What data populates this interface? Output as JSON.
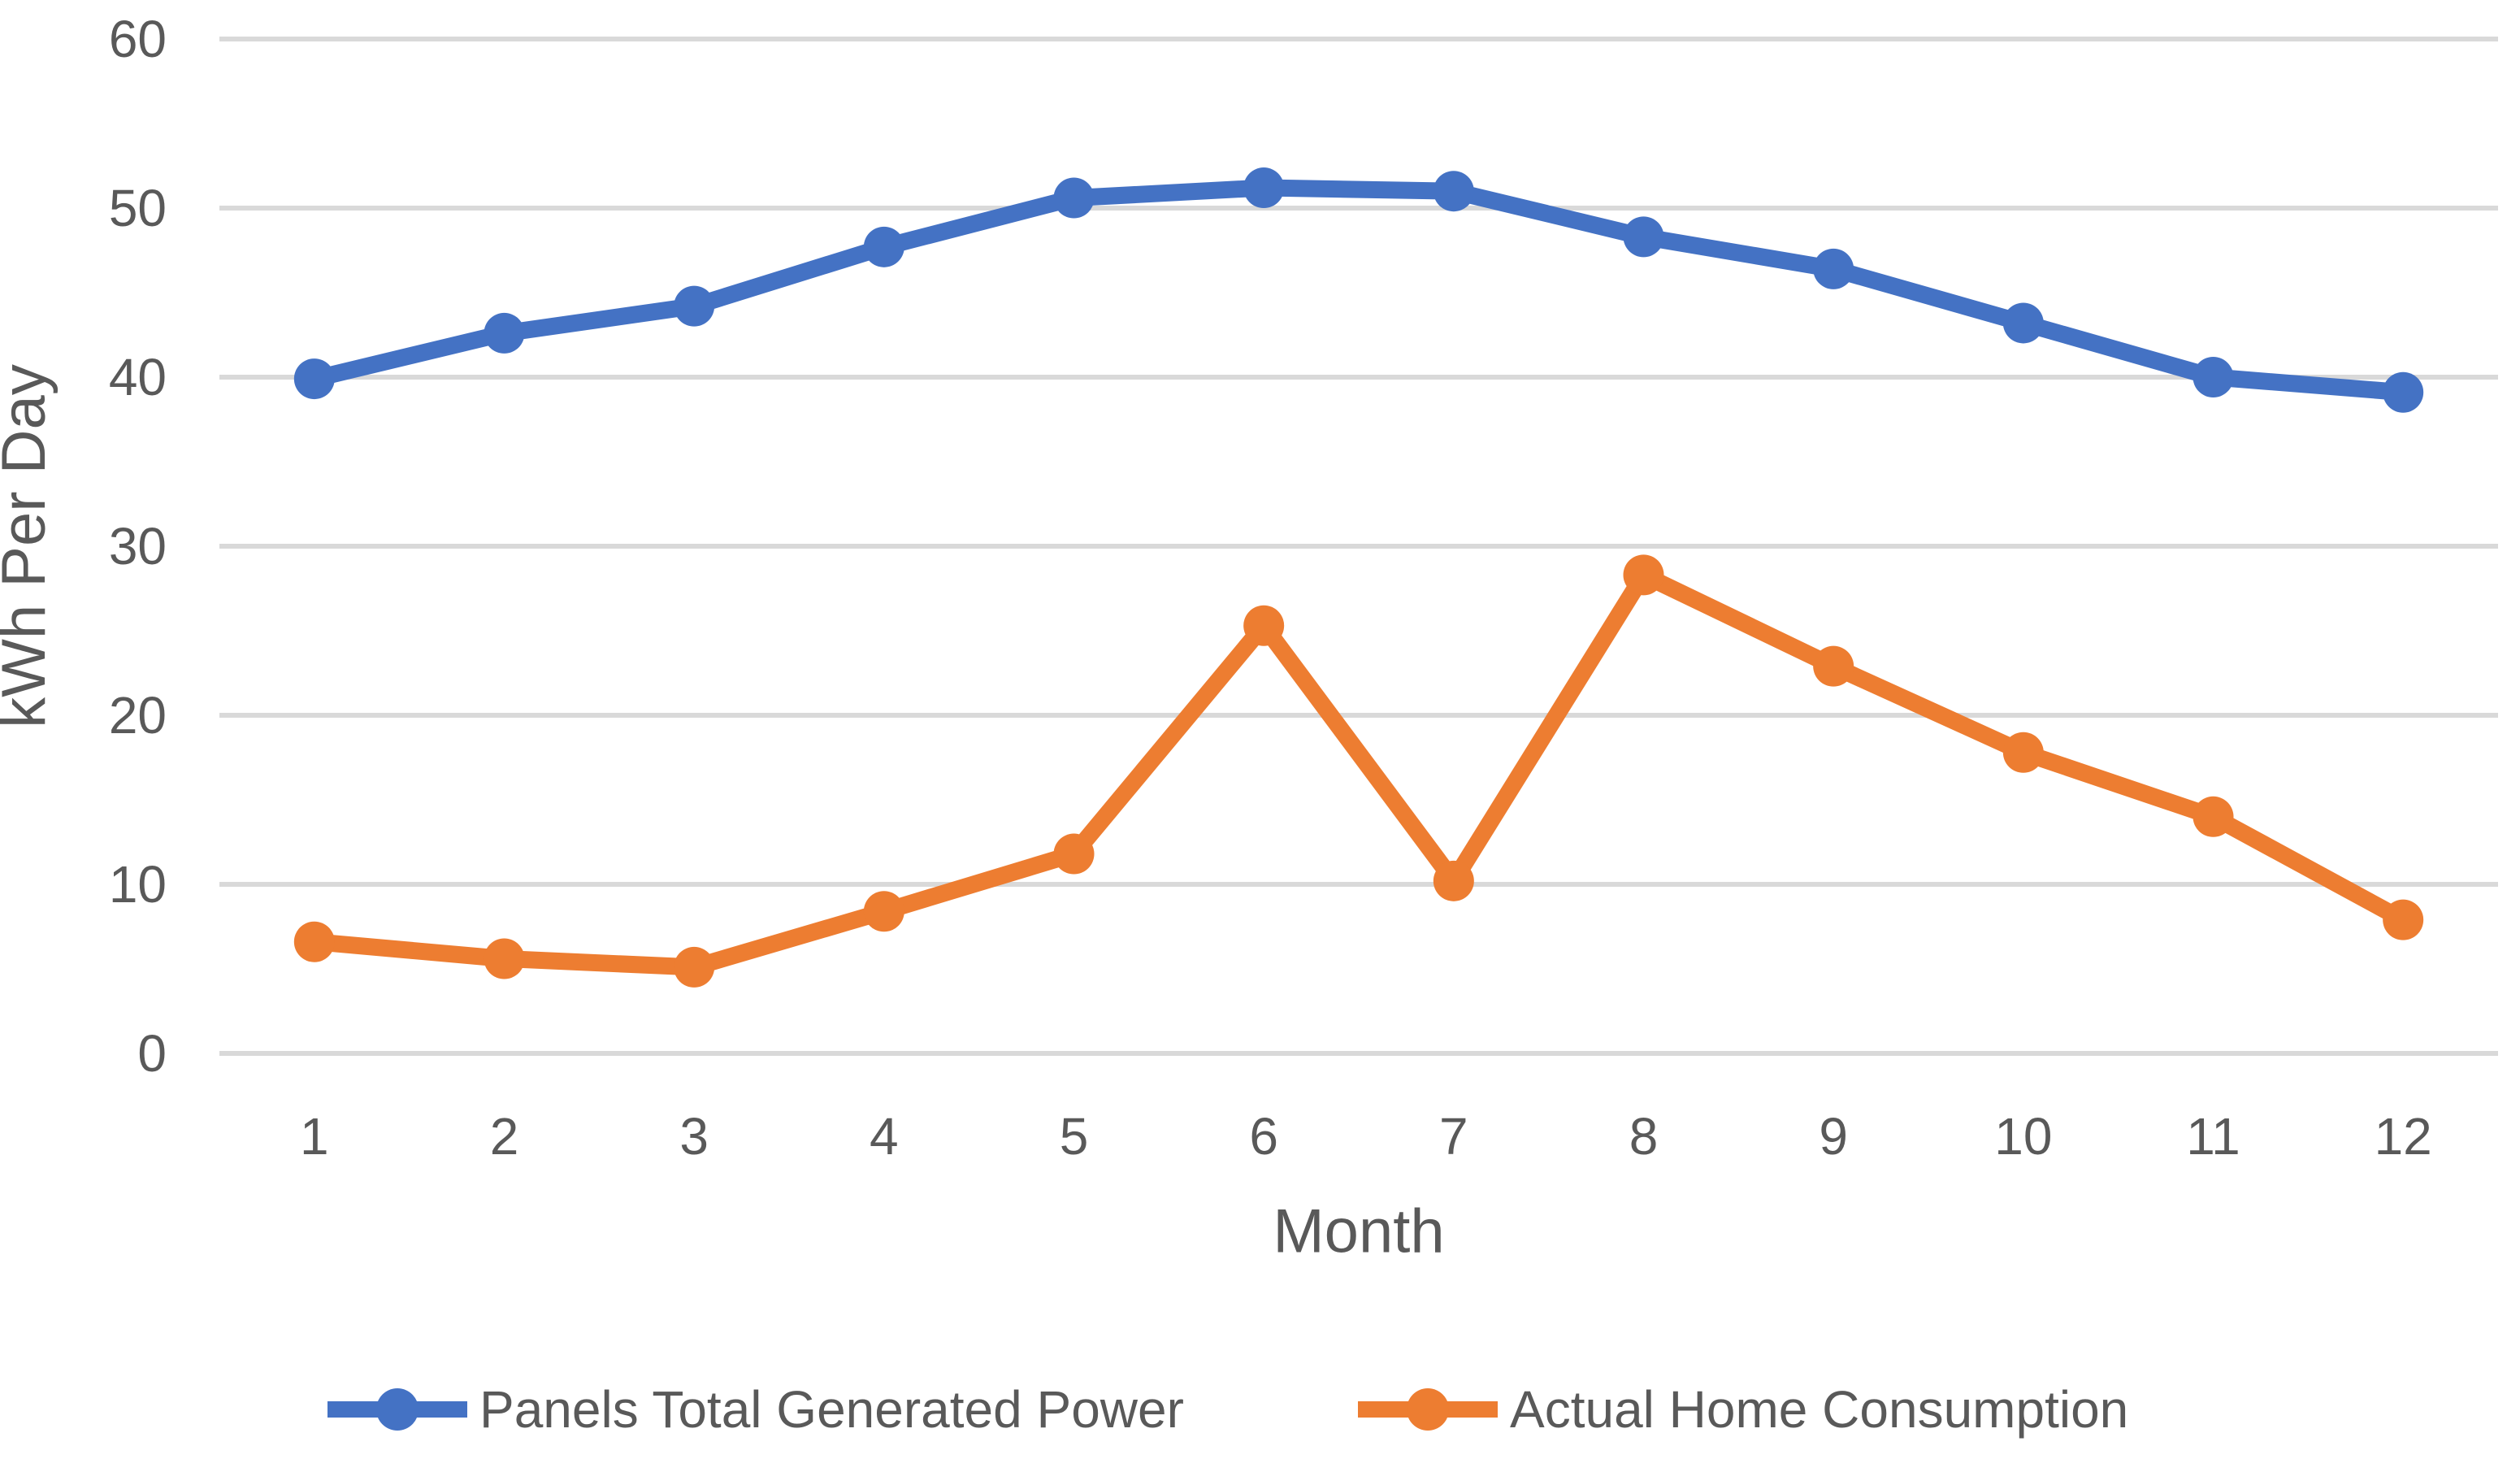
{
  "chart_data": {
    "type": "line",
    "title": "",
    "xlabel": "Month",
    "ylabel": "kWh Per Day",
    "x": [
      1,
      2,
      3,
      4,
      5,
      6,
      7,
      8,
      9,
      10,
      11,
      12
    ],
    "ylim": [
      0,
      60
    ],
    "yticks": [
      0,
      10,
      20,
      30,
      40,
      50,
      60
    ],
    "grid": true,
    "legend_position": "bottom",
    "series": [
      {
        "name": "Panels Total Generated Power",
        "color": "#4472C4",
        "values": [
          39.9,
          42.6,
          44.2,
          47.7,
          50.6,
          51.2,
          51.0,
          48.3,
          46.4,
          43.2,
          40.0,
          39.1
        ]
      },
      {
        "name": "Actual Home Consumption",
        "color": "#ED7D31",
        "values": [
          6.6,
          5.6,
          5.1,
          8.4,
          11.8,
          25.3,
          10.2,
          28.3,
          22.9,
          17.8,
          14.0,
          7.9
        ]
      }
    ]
  },
  "styles": {
    "grid_color": "#D9D9D9",
    "text_color": "#595959",
    "background": "#FFFFFF"
  }
}
